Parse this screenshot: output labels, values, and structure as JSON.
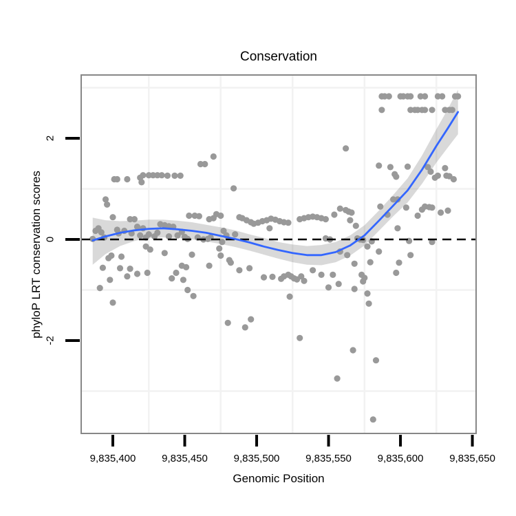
{
  "title": "Conservation",
  "x_axis": {
    "label": "Genomic Position",
    "tick_labels": [
      "9,835,400",
      "9,835,450",
      "9,835,500",
      "9,835,550",
      "9,835,600",
      "9,835,650"
    ],
    "tick_values": [
      9835400,
      9835450,
      9835500,
      9835550,
      9835600,
      9835650
    ]
  },
  "y_axis": {
    "label": "phyloP LRT conservation scores",
    "tick_labels": [
      "2",
      "0",
      "-2"
    ],
    "tick_values": [
      2,
      0,
      -2
    ]
  },
  "chart_data": {
    "type": "scatter",
    "title": "Conservation",
    "xlabel": "Genomic Position",
    "ylabel": "phyloP LRT conservation scores",
    "xlim": [
      9835378,
      9835652
    ],
    "ylim": [
      -3.84,
      3.25
    ],
    "x_ticks": {
      "values": [
        9835400,
        9835450,
        9835500,
        9835550,
        9835600,
        9835650
      ],
      "labels": [
        "9,835,400",
        "9,835,450",
        "9,835,500",
        "9,835,550",
        "9,835,600",
        "9,835,650"
      ]
    },
    "y_ticks": {
      "values": [
        2,
        0,
        -2
      ],
      "labels": [
        "2",
        "0",
        "-2"
      ]
    },
    "grid": {
      "x_values": [
        9835425,
        9835475,
        9835525,
        9835575,
        9835625
      ],
      "y_values": [
        -3,
        -1,
        1,
        3
      ],
      "color": "#f2f2f2"
    },
    "reference_line": {
      "y": 0,
      "style": "dashed",
      "color": "#000000"
    },
    "colors": {
      "point": "#999999",
      "smooth_line": "#3366FF",
      "confidence_band": "rgba(120,120,120,0.28)",
      "panel_border": "#878787",
      "tick_mark": "#000000",
      "background": "#ffffff"
    },
    "points": [
      [
        9835386,
        0.01
      ],
      [
        9835388,
        0.17
      ],
      [
        9835390,
        0.22
      ],
      [
        9835391,
        -0.96
      ],
      [
        9835392,
        0.14
      ],
      [
        9835393,
        -0.56
      ],
      [
        9835394,
        0.04
      ],
      [
        9835395,
        0.79
      ],
      [
        9835396,
        0.69
      ],
      [
        9835397,
        -0.37
      ],
      [
        9835398,
        -0.8
      ],
      [
        9835399,
        -0.32
      ],
      [
        9835400,
        0.44
      ],
      [
        9835400,
        -1.25
      ],
      [
        9835401,
        1.19
      ],
      [
        9835403,
        1.19
      ],
      [
        9835403,
        0.19
      ],
      [
        9835404,
        0.12
      ],
      [
        9835405,
        -0.57
      ],
      [
        9835406,
        -0.34
      ],
      [
        9835408,
        0.17
      ],
      [
        9835410,
        -0.73
      ],
      [
        9835410,
        1.19
      ],
      [
        9835412,
        0.4
      ],
      [
        9835412,
        -0.58
      ],
      [
        9835413,
        0.12
      ],
      [
        9835415,
        0.4
      ],
      [
        9835417,
        0.25
      ],
      [
        9835417,
        -0.68
      ],
      [
        9835419,
        1.22
      ],
      [
        9835419,
        0.08
      ],
      [
        9835420,
        1.13
      ],
      [
        9835421,
        1.27
      ],
      [
        9835421,
        0.22
      ],
      [
        9835423,
        0.04
      ],
      [
        9835423,
        -0.14
      ],
      [
        9835424,
        -0.66
      ],
      [
        9835425,
        1.27
      ],
      [
        9835425,
        0.1
      ],
      [
        9835426,
        -0.2
      ],
      [
        9835428,
        1.27
      ],
      [
        9835429,
        0.06
      ],
      [
        9835431,
        1.27
      ],
      [
        9835431,
        0.13
      ],
      [
        9835433,
        0.3
      ],
      [
        9835434,
        1.27
      ],
      [
        9835436,
        0.28
      ],
      [
        9835436,
        -0.27
      ],
      [
        9835438,
        1.26
      ],
      [
        9835439,
        0.26
      ],
      [
        9835439,
        0.06
      ],
      [
        9835441,
        -0.77
      ],
      [
        9835442,
        0.25
      ],
      [
        9835443,
        1.26
      ],
      [
        9835444,
        -0.66
      ],
      [
        9835445,
        0.08
      ],
      [
        9835447,
        1.26
      ],
      [
        9835448,
        0.15
      ],
      [
        9835448,
        -0.52
      ],
      [
        9835449,
        -0.8
      ],
      [
        9835450,
        0.05
      ],
      [
        9835451,
        -0.55
      ],
      [
        9835452,
        0.01
      ],
      [
        9835452,
        -1.0
      ],
      [
        9835453,
        0.47
      ],
      [
        9835455,
        -0.3
      ],
      [
        9835456,
        -1.12
      ],
      [
        9835457,
        0.47
      ],
      [
        9835459,
        0.04
      ],
      [
        9835460,
        0.46
      ],
      [
        9835461,
        1.49
      ],
      [
        9835463,
        0.0
      ],
      [
        9835464,
        1.49
      ],
      [
        9835466,
        0.01
      ],
      [
        9835467,
        0.4
      ],
      [
        9835467,
        -0.52
      ],
      [
        9835468,
        0.04
      ],
      [
        9835470,
        1.64
      ],
      [
        9835470,
        0.42
      ],
      [
        9835472,
        0.5
      ],
      [
        9835474,
        -0.18
      ],
      [
        9835475,
        0.47
      ],
      [
        9835475,
        -0.32
      ],
      [
        9835476,
        -0.05
      ],
      [
        9835477,
        0.17
      ],
      [
        9835479,
        0.08
      ],
      [
        9835480,
        -1.65
      ],
      [
        9835481,
        -0.41
      ],
      [
        9835482,
        -0.46
      ],
      [
        9835484,
        1.01
      ],
      [
        9835485,
        0.1
      ],
      [
        9835488,
        0.44
      ],
      [
        9835488,
        -0.61
      ],
      [
        9835490,
        0.42
      ],
      [
        9835492,
        -1.74
      ],
      [
        9835493,
        0.38
      ],
      [
        9835495,
        -0.57
      ],
      [
        9835496,
        0.34
      ],
      [
        9835496,
        -1.58
      ],
      [
        9835498,
        0.31
      ],
      [
        9835501,
        0.33
      ],
      [
        9835504,
        0.36
      ],
      [
        9835505,
        -0.75
      ],
      [
        9835507,
        0.38
      ],
      [
        9835509,
        0.22
      ],
      [
        9835510,
        0.41
      ],
      [
        9835511,
        -0.74
      ],
      [
        9835513,
        0.39
      ],
      [
        9835516,
        0.36
      ],
      [
        9835517,
        -0.78
      ],
      [
        9835519,
        0.34
      ],
      [
        9835519,
        -0.73
      ],
      [
        9835522,
        0.33
      ],
      [
        9835522,
        -0.7
      ],
      [
        9835523,
        -1.13
      ],
      [
        9835524,
        -0.73
      ],
      [
        9835526,
        -0.77
      ],
      [
        9835528,
        -0.79
      ],
      [
        9835530,
        0.4
      ],
      [
        9835530,
        -1.95
      ],
      [
        9835531,
        -0.73
      ],
      [
        9835533,
        0.42
      ],
      [
        9835533,
        -0.82
      ],
      [
        9835536,
        0.44
      ],
      [
        9835539,
        0.45
      ],
      [
        9835539,
        -0.61
      ],
      [
        9835542,
        0.44
      ],
      [
        9835545,
        0.42
      ],
      [
        9835545,
        -0.7
      ],
      [
        9835548,
        0.4
      ],
      [
        9835548,
        0.02
      ],
      [
        9835550,
        -0.95
      ],
      [
        9835551,
        0.0
      ],
      [
        9835553,
        -0.7
      ],
      [
        9835554,
        0.49
      ],
      [
        9835556,
        -2.75
      ],
      [
        9835557,
        -0.88
      ],
      [
        9835558,
        0.61
      ],
      [
        9835558,
        -0.24
      ],
      [
        9835562,
        1.8
      ],
      [
        9835562,
        0.58
      ],
      [
        9835563,
        -0.31
      ],
      [
        9835564,
        0.55
      ],
      [
        9835565,
        0.38
      ],
      [
        9835566,
        0.53
      ],
      [
        9835567,
        -2.19
      ],
      [
        9835568,
        -0.98
      ],
      [
        9835568,
        -0.48
      ],
      [
        9835569,
        0.27
      ],
      [
        9835570,
        0.02
      ],
      [
        9835572,
        0.0
      ],
      [
        9835573,
        -0.7
      ],
      [
        9835574,
        -0.01
      ],
      [
        9835574,
        -0.83
      ],
      [
        9835575,
        -0.76
      ],
      [
        9835577,
        -0.14
      ],
      [
        9835577,
        -1.07
      ],
      [
        9835578,
        -1.27
      ],
      [
        9835579,
        -0.45
      ],
      [
        9835580,
        -0.04
      ],
      [
        9835581,
        -3.56
      ],
      [
        9835583,
        -2.39
      ],
      [
        9835585,
        1.46
      ],
      [
        9835585,
        -0.24
      ],
      [
        9835586,
        0.65
      ],
      [
        9835587,
        2.83
      ],
      [
        9835587,
        2.56
      ],
      [
        9835589,
        2.83
      ],
      [
        9835591,
        0.49
      ],
      [
        9835592,
        2.83
      ],
      [
        9835593,
        1.43
      ],
      [
        9835595,
        0.79
      ],
      [
        9835596,
        1.29
      ],
      [
        9835597,
        1.24
      ],
      [
        9835597,
        -0.66
      ],
      [
        9835598,
        0.79
      ],
      [
        9835598,
        0.22
      ],
      [
        9835599,
        -0.46
      ],
      [
        9835600,
        2.83
      ],
      [
        9835602,
        2.83
      ],
      [
        9835604,
        0.63
      ],
      [
        9835605,
        2.83
      ],
      [
        9835605,
        1.44
      ],
      [
        9835606,
        -0.03
      ],
      [
        9835607,
        2.83
      ],
      [
        9835607,
        2.56
      ],
      [
        9835607,
        -0.31
      ],
      [
        9835610,
        2.56
      ],
      [
        9835612,
        2.56
      ],
      [
        9835612,
        0.47
      ],
      [
        9835614,
        2.83
      ],
      [
        9835615,
        2.56
      ],
      [
        9835615,
        0.59
      ],
      [
        9835617,
        2.83
      ],
      [
        9835617,
        2.56
      ],
      [
        9835617,
        0.65
      ],
      [
        9835619,
        1.43
      ],
      [
        9835620,
        0.64
      ],
      [
        9835621,
        1.34
      ],
      [
        9835622,
        2.56
      ],
      [
        9835622,
        0.63
      ],
      [
        9835622,
        -0.05
      ],
      [
        9835624,
        1.22
      ],
      [
        9835626,
        2.83
      ],
      [
        9835626,
        1.26
      ],
      [
        9835628,
        0.53
      ],
      [
        9835629,
        2.83
      ],
      [
        9835631,
        2.56
      ],
      [
        9835631,
        1.41
      ],
      [
        9835632,
        1.26
      ],
      [
        9835633,
        0.57
      ],
      [
        9835634,
        2.56
      ],
      [
        9835634,
        1.25
      ],
      [
        9835636,
        2.56
      ],
      [
        9835637,
        1.19
      ],
      [
        9835638,
        2.83
      ],
      [
        9835640,
        2.83
      ]
    ],
    "smooth": [
      [
        9835386,
        -0.02,
        -0.5,
        0.43
      ],
      [
        9835395,
        0.06,
        -0.29,
        0.38
      ],
      [
        9835405,
        0.13,
        -0.13,
        0.36
      ],
      [
        9835415,
        0.18,
        -0.03,
        0.37
      ],
      [
        9835425,
        0.21,
        0.03,
        0.39
      ],
      [
        9835435,
        0.22,
        0.04,
        0.39
      ],
      [
        9835445,
        0.2,
        0.03,
        0.37
      ],
      [
        9835455,
        0.17,
        0.0,
        0.34
      ],
      [
        9835465,
        0.13,
        -0.04,
        0.29
      ],
      [
        9835475,
        0.07,
        -0.09,
        0.24
      ],
      [
        9835485,
        0.01,
        -0.15,
        0.18
      ],
      [
        9835495,
        -0.06,
        -0.22,
        0.1
      ],
      [
        9835505,
        -0.14,
        -0.3,
        0.03
      ],
      [
        9835515,
        -0.21,
        -0.38,
        -0.05
      ],
      [
        9835525,
        -0.27,
        -0.45,
        -0.1
      ],
      [
        9835535,
        -0.31,
        -0.5,
        -0.13
      ],
      [
        9835545,
        -0.31,
        -0.51,
        -0.11
      ],
      [
        9835555,
        -0.25,
        -0.45,
        -0.05
      ],
      [
        9835565,
        -0.12,
        -0.32,
        0.08
      ],
      [
        9835575,
        0.08,
        -0.12,
        0.28
      ],
      [
        9835585,
        0.37,
        0.17,
        0.57
      ],
      [
        9835595,
        0.67,
        0.46,
        0.88
      ],
      [
        9835605,
        0.97,
        0.73,
        1.21
      ],
      [
        9835615,
        1.38,
        1.1,
        1.66
      ],
      [
        9835625,
        1.85,
        1.52,
        2.18
      ],
      [
        9835633,
        2.2,
        1.82,
        2.58
      ],
      [
        9835640,
        2.52,
        2.08,
        2.96
      ]
    ]
  }
}
